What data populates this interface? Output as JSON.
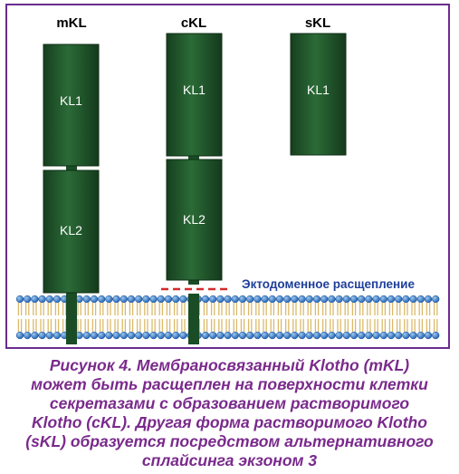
{
  "forms": [
    {
      "label": "mKL",
      "domains": [
        "KL1",
        "KL2"
      ],
      "membrane_bound": true
    },
    {
      "label": "cKL",
      "domains": [
        "KL1",
        "KL2"
      ],
      "membrane_bound": false
    },
    {
      "label": "sKL",
      "domains": [
        "KL1"
      ],
      "membrane_bound": false
    }
  ],
  "cleavage_label": "Эктодоменное расщепление",
  "caption_lines": [
    "Рисунок 4. Мембраносвязанный Klotho (mKL)",
    "может быть расщеплен на поверхности клетки",
    "секретазами с образованием растворимого",
    "Klotho (cKL). Другая форма растворимого Klotho",
    "(sKL) образуется посредством альтернативного",
    "сплайсинга экзоном 3"
  ],
  "colors": {
    "frame": "#6a2c8e",
    "domain_fill": "#1f5a2c",
    "membrane_head": "#2f7ec8",
    "membrane_tail": "#e0c27a",
    "cleavage_line": "#d42a2a",
    "cleavage_text": "#1e3f9a",
    "caption": "#7a2a8c"
  }
}
